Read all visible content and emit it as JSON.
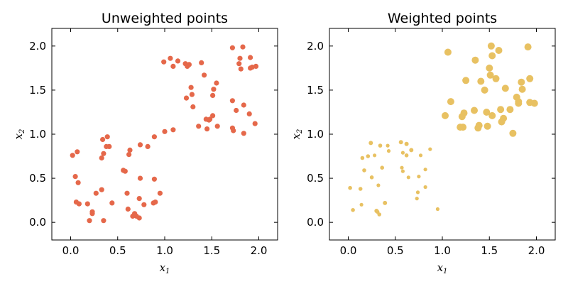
{
  "chart_data": [
    {
      "type": "scatter",
      "title": "Unweighted points",
      "xlabel": "x",
      "xlabel_sub": "1",
      "ylabel": "x",
      "ylabel_sub": "2",
      "xlim": [
        -0.2,
        2.2
      ],
      "ylim": [
        -0.2,
        2.2
      ],
      "xticks": [
        "0.0",
        "0.5",
        "1.0",
        "1.5",
        "2.0"
      ],
      "yticks": [
        "0.0",
        "0.5",
        "1.0",
        "1.5",
        "2.0"
      ],
      "grid": false,
      "color": "#e5684a",
      "points": [
        [
          0.02,
          0.76
        ],
        [
          0.07,
          0.8
        ],
        [
          0.05,
          0.52
        ],
        [
          0.08,
          0.45
        ],
        [
          0.06,
          0.23
        ],
        [
          0.09,
          0.21
        ],
        [
          0.18,
          0.21
        ],
        [
          0.2,
          0.02
        ],
        [
          0.23,
          0.1
        ],
        [
          0.23,
          0.12
        ],
        [
          0.27,
          0.33
        ],
        [
          0.33,
          0.37
        ],
        [
          0.35,
          0.02
        ],
        [
          0.33,
          0.73
        ],
        [
          0.35,
          0.78
        ],
        [
          0.34,
          0.94
        ],
        [
          0.39,
          0.97
        ],
        [
          0.38,
          0.86
        ],
        [
          0.41,
          0.86
        ],
        [
          0.44,
          0.22
        ],
        [
          0.56,
          0.59
        ],
        [
          0.58,
          0.58
        ],
        [
          0.6,
          0.33
        ],
        [
          0.61,
          0.15
        ],
        [
          0.62,
          0.77
        ],
        [
          0.63,
          0.82
        ],
        [
          0.66,
          0.07
        ],
        [
          0.68,
          0.1
        ],
        [
          0.7,
          0.07
        ],
        [
          0.73,
          0.05
        ],
        [
          0.73,
          0.27
        ],
        [
          0.74,
          0.5
        ],
        [
          0.74,
          0.88
        ],
        [
          0.78,
          0.2
        ],
        [
          0.82,
          0.86
        ],
        [
          0.88,
          0.22
        ],
        [
          0.89,
          0.49
        ],
        [
          0.89,
          0.97
        ],
        [
          0.9,
          0.23
        ],
        [
          0.95,
          0.33
        ],
        [
          0.99,
          1.82
        ],
        [
          1.0,
          1.03
        ],
        [
          1.06,
          1.86
        ],
        [
          1.09,
          1.77
        ],
        [
          1.09,
          1.05
        ],
        [
          1.14,
          1.83
        ],
        [
          1.22,
          1.8
        ],
        [
          1.23,
          1.41
        ],
        [
          1.24,
          1.77
        ],
        [
          1.26,
          1.79
        ],
        [
          1.28,
          1.53
        ],
        [
          1.29,
          1.45
        ],
        [
          1.3,
          1.31
        ],
        [
          1.36,
          1.09
        ],
        [
          1.39,
          1.81
        ],
        [
          1.42,
          1.67
        ],
        [
          1.44,
          1.17
        ],
        [
          1.45,
          1.06
        ],
        [
          1.47,
          1.16
        ],
        [
          1.48,
          1.17
        ],
        [
          1.51,
          1.21
        ],
        [
          1.51,
          1.44
        ],
        [
          1.52,
          1.51
        ],
        [
          1.55,
          1.58
        ],
        [
          1.56,
          1.09
        ],
        [
          1.72,
          1.98
        ],
        [
          1.72,
          1.38
        ],
        [
          1.72,
          1.07
        ],
        [
          1.73,
          1.04
        ],
        [
          1.76,
          1.27
        ],
        [
          1.79,
          1.8
        ],
        [
          1.8,
          1.86
        ],
        [
          1.81,
          1.74
        ],
        [
          1.83,
          1.99
        ],
        [
          1.84,
          1.33
        ],
        [
          1.84,
          1.01
        ],
        [
          1.9,
          1.23
        ],
        [
          1.91,
          1.87
        ],
        [
          1.91,
          1.75
        ],
        [
          1.93,
          1.76
        ],
        [
          1.96,
          1.12
        ],
        [
          1.97,
          1.77
        ]
      ]
    },
    {
      "type": "scatter",
      "title": "Weighted points",
      "xlabel": "x",
      "xlabel_sub": "1",
      "ylabel": "x",
      "ylabel_sub": "2",
      "xlim": [
        -0.2,
        2.2
      ],
      "ylim": [
        -0.2,
        2.2
      ],
      "xticks": [
        "0.0",
        "0.5",
        "1.0",
        "1.5",
        "2.0"
      ],
      "yticks": [
        "0.0",
        "0.5",
        "1.0",
        "1.5",
        "2.0"
      ],
      "grid": false,
      "color": "#e8c162",
      "points": [
        [
          0.02,
          0.39,
          2.8
        ],
        [
          0.05,
          0.14,
          2.8
        ],
        [
          0.13,
          0.38,
          2.8
        ],
        [
          0.14,
          0.2,
          2.6
        ],
        [
          0.15,
          0.73,
          2.8
        ],
        [
          0.17,
          0.59,
          2.8
        ],
        [
          0.21,
          0.75,
          2.8
        ],
        [
          0.24,
          0.9,
          3.0
        ],
        [
          0.25,
          0.51,
          2.8
        ],
        [
          0.28,
          0.76,
          2.6
        ],
        [
          0.3,
          0.13,
          3.0
        ],
        [
          0.31,
          0.12,
          2.8
        ],
        [
          0.32,
          0.42,
          2.6
        ],
        [
          0.33,
          0.09,
          2.8
        ],
        [
          0.34,
          0.87,
          2.8
        ],
        [
          0.36,
          0.62,
          2.8
        ],
        [
          0.39,
          0.22,
          3.0
        ],
        [
          0.42,
          0.87,
          2.6
        ],
        [
          0.43,
          0.81,
          2.6
        ],
        [
          0.56,
          0.91,
          3.0
        ],
        [
          0.57,
          0.62,
          2.6
        ],
        [
          0.58,
          0.58,
          2.6
        ],
        [
          0.58,
          0.79,
          2.6
        ],
        [
          0.62,
          0.76,
          2.8
        ],
        [
          0.62,
          0.89,
          3.0
        ],
        [
          0.64,
          0.51,
          2.6
        ],
        [
          0.67,
          0.82,
          3.0
        ],
        [
          0.73,
          0.27,
          2.6
        ],
        [
          0.74,
          0.34,
          2.6
        ],
        [
          0.75,
          0.52,
          2.6
        ],
        [
          0.77,
          0.76,
          2.6
        ],
        [
          0.82,
          0.6,
          2.6
        ],
        [
          0.82,
          0.4,
          2.6
        ],
        [
          0.87,
          0.83,
          2.6
        ],
        [
          0.95,
          0.15,
          2.6
        ],
        [
          1.03,
          1.21,
          5.0
        ],
        [
          1.06,
          1.93,
          5.0
        ],
        [
          1.09,
          1.37,
          5.0
        ],
        [
          1.19,
          1.08,
          5.0
        ],
        [
          1.21,
          1.2,
          5.0
        ],
        [
          1.22,
          1.08,
          5.0
        ],
        [
          1.23,
          1.24,
          5.0
        ],
        [
          1.25,
          1.61,
          5.0
        ],
        [
          1.34,
          1.27,
          5.0
        ],
        [
          1.35,
          1.84,
          5.0
        ],
        [
          1.38,
          1.07,
          5.0
        ],
        [
          1.39,
          1.1,
          5.0
        ],
        [
          1.41,
          1.6,
          5.0
        ],
        [
          1.45,
          1.5,
          5.0
        ],
        [
          1.47,
          1.25,
          5.0
        ],
        [
          1.48,
          1.09,
          5.0
        ],
        [
          1.5,
          1.75,
          5.0
        ],
        [
          1.51,
          1.67,
          5.0
        ],
        [
          1.52,
          2.0,
          5.0
        ],
        [
          1.53,
          1.89,
          5.0
        ],
        [
          1.53,
          1.21,
          5.0
        ],
        [
          1.57,
          1.63,
          5.0
        ],
        [
          1.6,
          1.95,
          5.0
        ],
        [
          1.62,
          1.28,
          5.0
        ],
        [
          1.63,
          1.14,
          5.0
        ],
        [
          1.65,
          1.18,
          5.0
        ],
        [
          1.67,
          1.52,
          5.0
        ],
        [
          1.72,
          1.28,
          5.0
        ],
        [
          1.75,
          1.01,
          5.0
        ],
        [
          1.79,
          1.42,
          5.0
        ],
        [
          1.81,
          1.37,
          5.0
        ],
        [
          1.81,
          1.35,
          5.0
        ],
        [
          1.84,
          1.59,
          5.0
        ],
        [
          1.85,
          1.51,
          5.0
        ],
        [
          1.91,
          1.99,
          5.0
        ],
        [
          1.93,
          1.36,
          5.0
        ],
        [
          1.93,
          1.63,
          5.0
        ],
        [
          1.98,
          1.35,
          5.0
        ]
      ]
    }
  ]
}
